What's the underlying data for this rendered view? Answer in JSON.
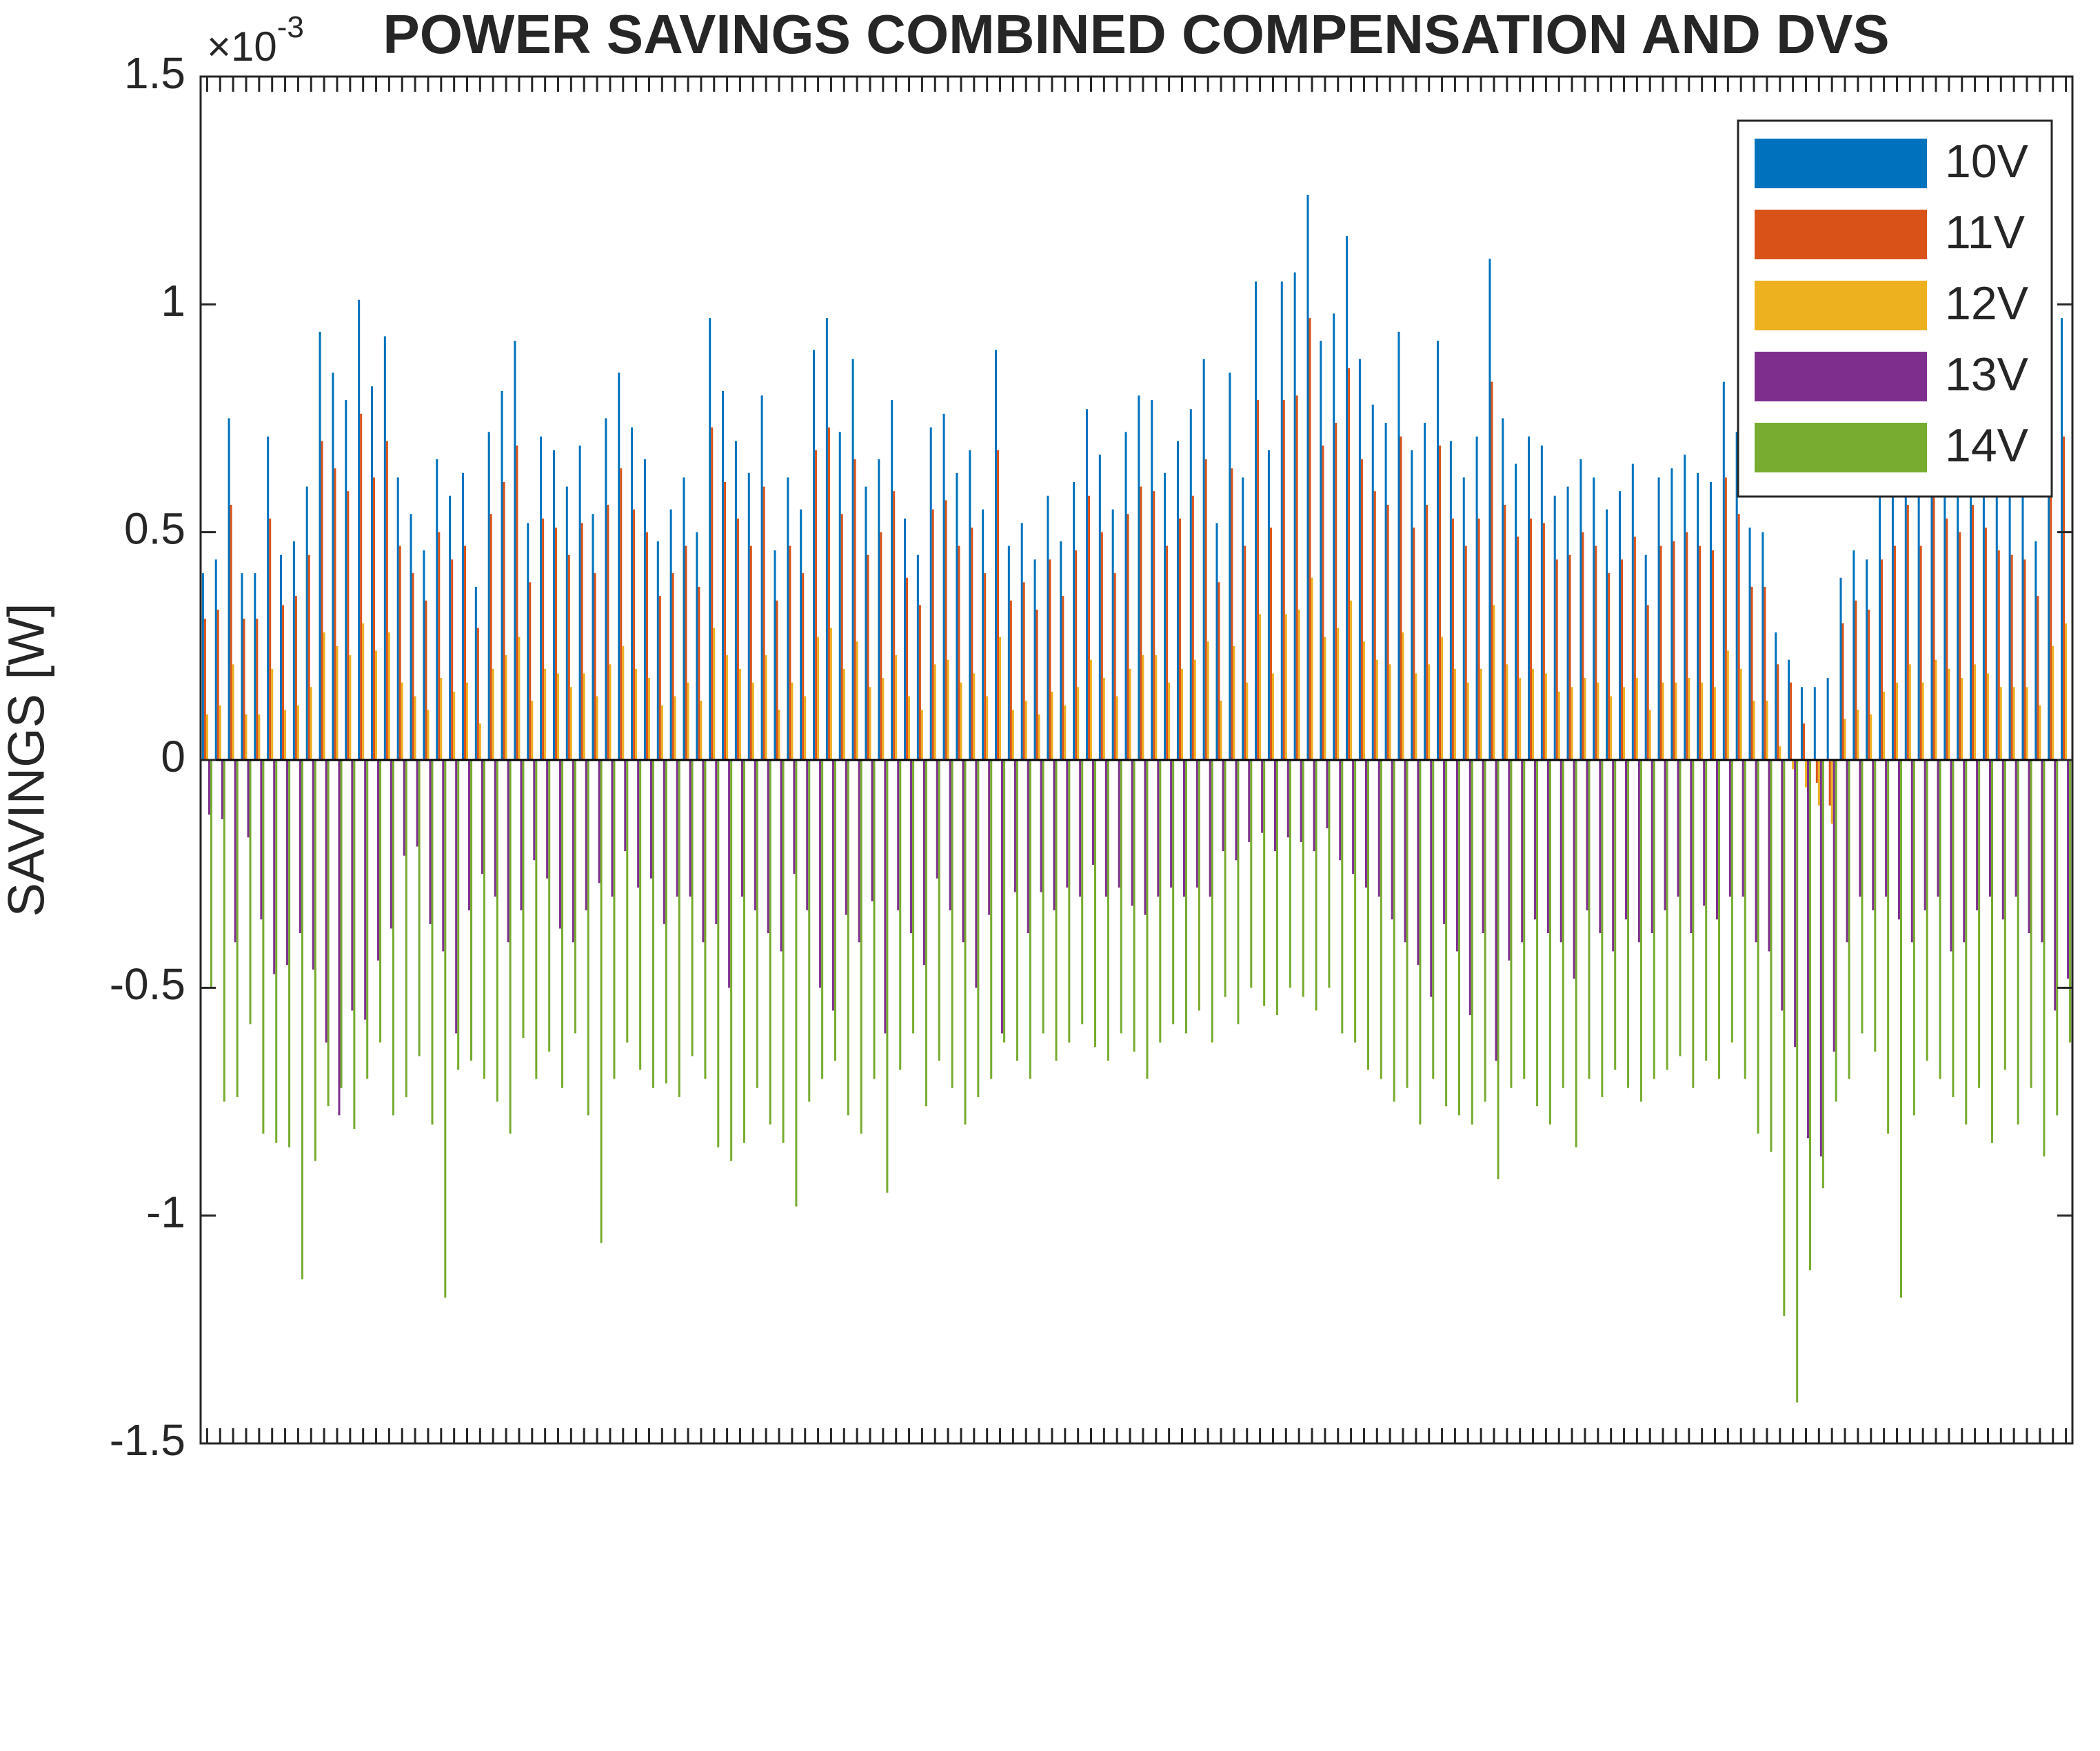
{
  "chart_data": {
    "type": "bar",
    "title": "POWER SAVINGS COMBINED COMPENSATION AND DVS",
    "y_label": "SAVINGS  [W]",
    "y_multiplier": {
      "base": "×10",
      "exponent": "-3"
    },
    "ylim": [
      -1.5,
      1.5
    ],
    "yticks": [
      -1.5,
      -1,
      -0.5,
      0,
      0.5,
      1,
      1.5
    ],
    "legend": "upper right",
    "categories": [
      null,
      null,
      null,
      null,
      null,
      null,
      null,
      null,
      null,
      null,
      null,
      null,
      null,
      null,
      null,
      null,
      null,
      null,
      null,
      null,
      null,
      null,
      null,
      null,
      null,
      null,
      null,
      null,
      null,
      null,
      null,
      null,
      null,
      null,
      null,
      null,
      null,
      null,
      null,
      null,
      null,
      null,
      null,
      null,
      null,
      null,
      null,
      null,
      null,
      null,
      null,
      null,
      null,
      null,
      null,
      null,
      null,
      null,
      null,
      null,
      null,
      null,
      null,
      null,
      null,
      null,
      null,
      null,
      null,
      null,
      null,
      null,
      null,
      null,
      null,
      null,
      null,
      null,
      null,
      null,
      null,
      null,
      null,
      null,
      null,
      null,
      null,
      null,
      null,
      null,
      null,
      null,
      null,
      null,
      null,
      null,
      null,
      null,
      null,
      null,
      null,
      null,
      null,
      null,
      null,
      null,
      null,
      null,
      null,
      null,
      null,
      null,
      null,
      null,
      null,
      null,
      null,
      null,
      null,
      null,
      null,
      null,
      null,
      null,
      null,
      null,
      null,
      null,
      null,
      null,
      null,
      null,
      null,
      null,
      null,
      null,
      null,
      null,
      null,
      null,
      null,
      null,
      null,
      null
    ],
    "series": [
      {
        "name": "10V",
        "color": "#0072BD",
        "values": [
          0.41,
          0.44,
          0.75,
          0.41,
          0.41,
          0.71,
          0.45,
          0.48,
          0.6,
          0.94,
          0.85,
          0.79,
          1.01,
          0.82,
          0.93,
          0.62,
          0.54,
          0.46,
          0.66,
          0.58,
          0.63,
          0.38,
          0.72,
          0.81,
          0.92,
          0.52,
          0.71,
          0.68,
          0.6,
          0.69,
          0.54,
          0.75,
          0.85,
          0.73,
          0.66,
          0.48,
          0.55,
          0.62,
          0.5,
          0.97,
          0.81,
          0.7,
          0.63,
          0.8,
          0.46,
          0.62,
          0.55,
          0.9,
          0.97,
          0.72,
          0.88,
          0.6,
          0.66,
          0.79,
          0.53,
          0.45,
          0.73,
          0.76,
          0.63,
          0.68,
          0.55,
          0.9,
          0.47,
          0.52,
          0.44,
          0.58,
          0.48,
          0.61,
          0.77,
          0.67,
          0.55,
          0.72,
          0.8,
          0.79,
          0.63,
          0.7,
          0.77,
          0.88,
          0.52,
          0.85,
          0.62,
          1.05,
          0.68,
          1.05,
          1.07,
          1.24,
          0.92,
          0.98,
          1.15,
          0.88,
          0.78,
          0.74,
          0.94,
          0.68,
          0.74,
          0.92,
          0.7,
          0.62,
          0.71,
          1.1,
          0.75,
          0.65,
          0.71,
          0.69,
          0.58,
          0.6,
          0.66,
          0.62,
          0.55,
          0.59,
          0.65,
          0.45,
          0.62,
          0.64,
          0.67,
          0.63,
          0.61,
          0.83,
          0.72,
          0.51,
          0.5,
          0.28,
          0.22,
          0.16,
          0.16,
          0.18,
          0.4,
          0.46,
          0.44,
          0.58,
          0.63,
          0.75,
          0.62,
          0.78,
          0.71,
          0.66,
          0.75,
          0.68,
          0.61,
          0.6,
          0.59,
          0.48,
          0.85,
          0.97
        ]
      },
      {
        "name": "11V",
        "color": "#D95319",
        "values": [
          0.31,
          0.33,
          0.56,
          0.31,
          0.31,
          0.53,
          0.34,
          0.36,
          0.45,
          0.7,
          0.64,
          0.59,
          0.76,
          0.62,
          0.7,
          0.47,
          0.41,
          0.35,
          0.5,
          0.44,
          0.47,
          0.29,
          0.54,
          0.61,
          0.69,
          0.39,
          0.53,
          0.51,
          0.45,
          0.52,
          0.41,
          0.56,
          0.64,
          0.55,
          0.5,
          0.36,
          0.41,
          0.47,
          0.38,
          0.73,
          0.61,
          0.53,
          0.47,
          0.6,
          0.35,
          0.47,
          0.41,
          0.68,
          0.73,
          0.54,
          0.66,
          0.45,
          0.5,
          0.59,
          0.4,
          0.34,
          0.55,
          0.57,
          0.47,
          0.51,
          0.41,
          0.68,
          0.35,
          0.39,
          0.33,
          0.44,
          0.36,
          0.46,
          0.58,
          0.5,
          0.41,
          0.54,
          0.6,
          0.59,
          0.47,
          0.53,
          0.58,
          0.66,
          0.39,
          0.64,
          0.47,
          0.79,
          0.51,
          0.79,
          0.8,
          0.97,
          0.69,
          0.74,
          0.86,
          0.66,
          0.59,
          0.56,
          0.71,
          0.51,
          0.56,
          0.69,
          0.53,
          0.47,
          0.53,
          0.83,
          0.56,
          0.49,
          0.53,
          0.52,
          0.44,
          0.45,
          0.5,
          0.47,
          0.41,
          0.44,
          0.49,
          0.34,
          0.47,
          0.48,
          0.5,
          0.47,
          0.46,
          0.62,
          0.54,
          0.38,
          0.38,
          0.21,
          0.17,
          0.08,
          -0.05,
          -0.1,
          0.3,
          0.35,
          0.33,
          0.44,
          0.47,
          0.56,
          0.47,
          0.59,
          0.53,
          0.5,
          0.56,
          0.51,
          0.46,
          0.45,
          0.44,
          0.36,
          0.64,
          0.71
        ]
      },
      {
        "name": "12V",
        "color": "#EDB120",
        "values": [
          0.1,
          0.12,
          0.21,
          0.1,
          0.1,
          0.2,
          0.11,
          0.12,
          0.16,
          0.28,
          0.25,
          0.23,
          0.3,
          0.24,
          0.28,
          0.17,
          0.14,
          0.11,
          0.18,
          0.15,
          0.17,
          0.08,
          0.2,
          0.23,
          0.27,
          0.13,
          0.2,
          0.19,
          0.16,
          0.19,
          0.14,
          0.21,
          0.25,
          0.2,
          0.18,
          0.12,
          0.14,
          0.17,
          0.13,
          0.29,
          0.23,
          0.2,
          0.17,
          0.23,
          0.11,
          0.17,
          0.14,
          0.27,
          0.29,
          0.2,
          0.26,
          0.16,
          0.18,
          0.23,
          0.14,
          0.11,
          0.21,
          0.22,
          0.17,
          0.19,
          0.14,
          0.27,
          0.11,
          0.13,
          0.1,
          0.15,
          0.12,
          0.16,
          0.22,
          0.18,
          0.14,
          0.2,
          0.23,
          0.23,
          0.17,
          0.2,
          0.22,
          0.26,
          0.13,
          0.25,
          0.17,
          0.32,
          0.19,
          0.32,
          0.33,
          0.4,
          0.27,
          0.29,
          0.35,
          0.26,
          0.22,
          0.21,
          0.28,
          0.19,
          0.21,
          0.27,
          0.2,
          0.17,
          0.2,
          0.34,
          0.21,
          0.18,
          0.2,
          0.19,
          0.15,
          0.16,
          0.18,
          0.17,
          0.14,
          0.16,
          0.18,
          0.11,
          0.17,
          0.17,
          0.18,
          0.17,
          0.16,
          0.24,
          0.2,
          0.13,
          0.13,
          0.03,
          -0.02,
          -0.06,
          -0.1,
          -0.14,
          0.09,
          0.11,
          0.1,
          0.15,
          0.17,
          0.21,
          0.17,
          0.22,
          0.2,
          0.18,
          0.21,
          0.19,
          0.16,
          0.16,
          0.16,
          0.12,
          0.25,
          0.3
        ]
      },
      {
        "name": "13V",
        "color": "#7E2F8E",
        "values": [
          -0.12,
          -0.13,
          -0.4,
          -0.17,
          -0.35,
          -0.47,
          -0.45,
          -0.38,
          -0.46,
          -0.62,
          -0.78,
          -0.55,
          -0.57,
          -0.44,
          -0.37,
          -0.21,
          -0.19,
          -0.36,
          -0.42,
          -0.6,
          -0.33,
          -0.25,
          -0.3,
          -0.4,
          -0.33,
          -0.22,
          -0.26,
          -0.37,
          -0.4,
          -0.33,
          -0.27,
          -0.3,
          -0.2,
          -0.28,
          -0.26,
          -0.36,
          -0.3,
          -0.3,
          -0.4,
          -0.36,
          -0.5,
          -0.3,
          -0.33,
          -0.38,
          -0.42,
          -0.25,
          -0.33,
          -0.5,
          -0.55,
          -0.34,
          -0.4,
          -0.31,
          -0.6,
          -0.33,
          -0.38,
          -0.45,
          -0.26,
          -0.33,
          -0.4,
          -0.5,
          -0.34,
          -0.6,
          -0.29,
          -0.38,
          -0.29,
          -0.33,
          -0.28,
          -0.3,
          -0.23,
          -0.3,
          -0.28,
          -0.32,
          -0.34,
          -0.3,
          -0.28,
          -0.3,
          -0.28,
          -0.3,
          -0.2,
          -0.22,
          -0.18,
          -0.16,
          -0.2,
          -0.17,
          -0.18,
          -0.2,
          -0.15,
          -0.22,
          -0.25,
          -0.28,
          -0.3,
          -0.35,
          -0.4,
          -0.45,
          -0.52,
          -0.36,
          -0.42,
          -0.56,
          -0.38,
          -0.66,
          -0.44,
          -0.4,
          -0.35,
          -0.38,
          -0.4,
          -0.48,
          -0.33,
          -0.38,
          -0.42,
          -0.35,
          -0.4,
          -0.38,
          -0.33,
          -0.3,
          -0.38,
          -0.32,
          -0.35,
          -0.3,
          -0.3,
          -0.4,
          -0.42,
          -0.55,
          -0.63,
          -0.83,
          -0.87,
          -0.64,
          -0.4,
          -0.3,
          -0.33,
          -0.3,
          -0.35,
          -0.4,
          -0.33,
          -0.3,
          -0.42,
          -0.4,
          -0.33,
          -0.3,
          -0.35,
          -0.3,
          -0.38,
          -0.4,
          -0.55,
          -0.48
        ]
      },
      {
        "name": "14V",
        "color": "#77AC30",
        "values": [
          -0.5,
          -0.75,
          -0.74,
          -0.58,
          -0.82,
          -0.84,
          -0.85,
          -1.14,
          -0.88,
          -0.76,
          -0.72,
          -0.81,
          -0.7,
          -0.62,
          -0.78,
          -0.74,
          -0.65,
          -0.8,
          -1.18,
          -0.68,
          -0.66,
          -0.7,
          -0.75,
          -0.82,
          -0.61,
          -0.7,
          -0.64,
          -0.72,
          -0.6,
          -0.78,
          -1.06,
          -0.7,
          -0.62,
          -0.68,
          -0.72,
          -0.71,
          -0.74,
          -0.65,
          -0.7,
          -0.85,
          -0.88,
          -0.84,
          -0.72,
          -0.8,
          -0.84,
          -0.98,
          -0.75,
          -0.7,
          -0.66,
          -0.78,
          -0.82,
          -0.7,
          -0.95,
          -0.68,
          -0.6,
          -0.76,
          -0.66,
          -0.72,
          -0.8,
          -0.74,
          -0.7,
          -0.62,
          -0.66,
          -0.7,
          -0.6,
          -0.66,
          -0.62,
          -0.58,
          -0.63,
          -0.66,
          -0.6,
          -0.64,
          -0.7,
          -0.62,
          -0.58,
          -0.6,
          -0.55,
          -0.62,
          -0.52,
          -0.58,
          -0.5,
          -0.54,
          -0.56,
          -0.5,
          -0.52,
          -0.55,
          -0.5,
          -0.6,
          -0.62,
          -0.68,
          -0.7,
          -0.75,
          -0.72,
          -0.8,
          -0.7,
          -0.76,
          -0.78,
          -0.8,
          -0.75,
          -0.92,
          -0.72,
          -0.7,
          -0.76,
          -0.8,
          -0.72,
          -0.85,
          -0.7,
          -0.74,
          -0.68,
          -0.72,
          -0.75,
          -0.7,
          -0.68,
          -0.65,
          -0.72,
          -0.66,
          -0.7,
          -0.62,
          -0.7,
          -0.82,
          -0.86,
          -1.22,
          -1.41,
          -1.12,
          -0.94,
          -0.75,
          -0.7,
          -0.6,
          -0.64,
          -0.82,
          -1.18,
          -0.78,
          -0.66,
          -0.7,
          -0.74,
          -0.8,
          -0.72,
          -0.84,
          -0.68,
          -0.8,
          -0.72,
          -0.87,
          -0.78,
          -0.62
        ]
      }
    ]
  }
}
